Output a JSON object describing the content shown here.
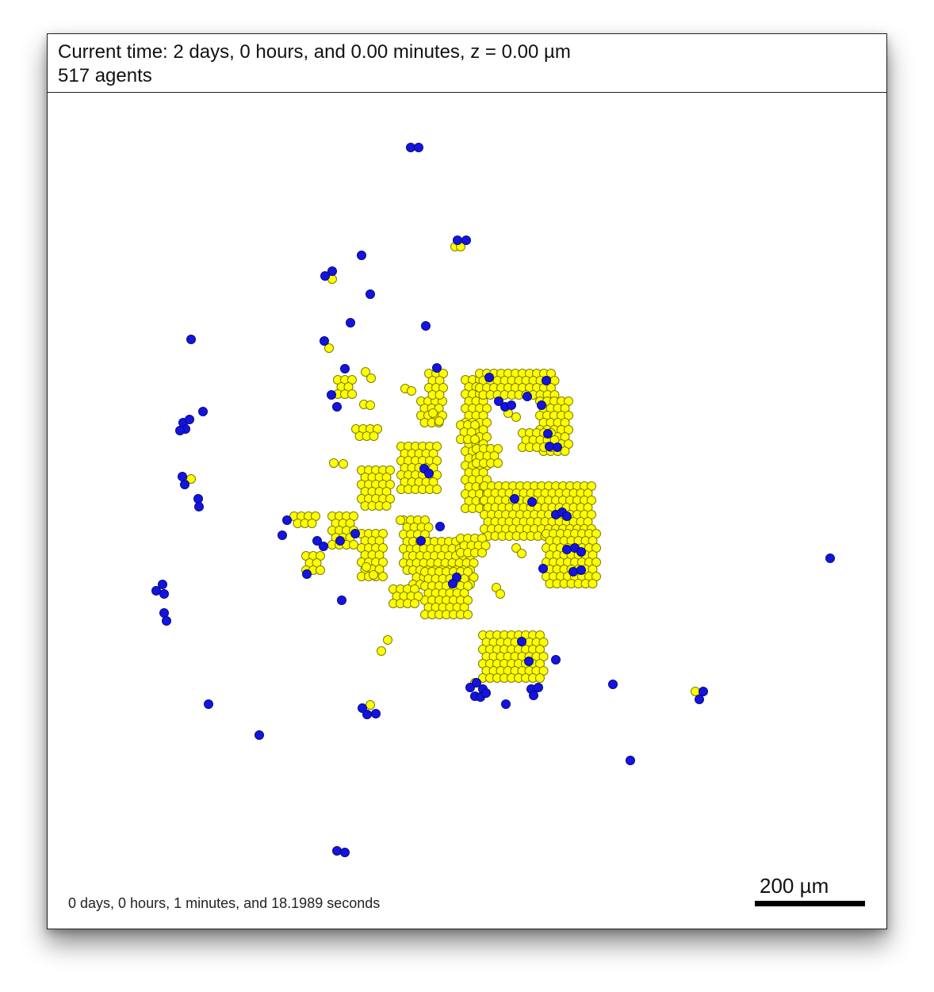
{
  "header": {
    "current_time": "Current time: 2 days, 0 hours, and 0.00 minutes, z = 0.00 µm",
    "agent_count": "517 agents"
  },
  "footer": {
    "elapsed": "0 days, 0 hours, 1 minutes, and 18.1989 seconds",
    "scale_label": "200 µm",
    "scale_length_um": 200
  },
  "colors": {
    "cell_a": "#ffff00",
    "cell_a_stroke": "#7a7a00",
    "cell_b": "#1414e0",
    "cell_b_stroke": "#0a0a80"
  }
}
